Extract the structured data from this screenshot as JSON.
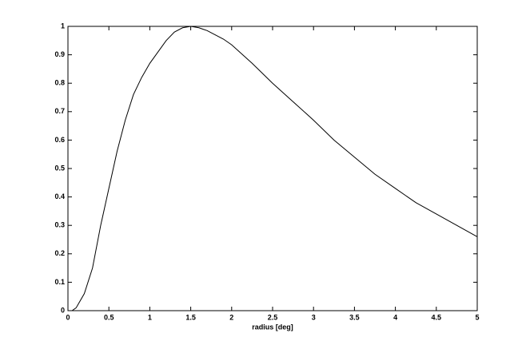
{
  "chart_data": {
    "type": "line",
    "xlabel": "radius [deg]",
    "x": [
      0,
      0.05,
      0.1,
      0.2,
      0.3,
      0.4,
      0.5,
      0.6,
      0.7,
      0.8,
      0.9,
      1.0,
      1.1,
      1.2,
      1.3,
      1.4,
      1.5,
      1.6,
      1.7,
      1.8,
      1.9,
      2.0,
      2.25,
      2.5,
      2.75,
      3.0,
      3.25,
      3.5,
      3.75,
      4.0,
      4.25,
      4.5,
      4.75,
      5.0
    ],
    "series": [
      {
        "color": "#000000",
        "values": [
          0,
          0,
          0.01,
          0.06,
          0.15,
          0.3,
          0.43,
          0.56,
          0.67,
          0.76,
          0.82,
          0.87,
          0.91,
          0.95,
          0.98,
          0.995,
          1.0,
          0.995,
          0.985,
          0.97,
          0.955,
          0.935,
          0.87,
          0.8,
          0.735,
          0.67,
          0.6,
          0.54,
          0.48,
          0.43,
          0.38,
          0.34,
          0.3,
          0.26
        ]
      }
    ],
    "xlim": [
      0,
      5
    ],
    "ylim": [
      0,
      1
    ],
    "xticks": [
      0,
      0.5,
      1,
      1.5,
      2,
      2.5,
      3,
      3.5,
      4,
      4.5,
      5
    ],
    "yticks": [
      0,
      0.1,
      0.2,
      0.3,
      0.4,
      0.5,
      0.6,
      0.7,
      0.8,
      0.9,
      1
    ]
  }
}
